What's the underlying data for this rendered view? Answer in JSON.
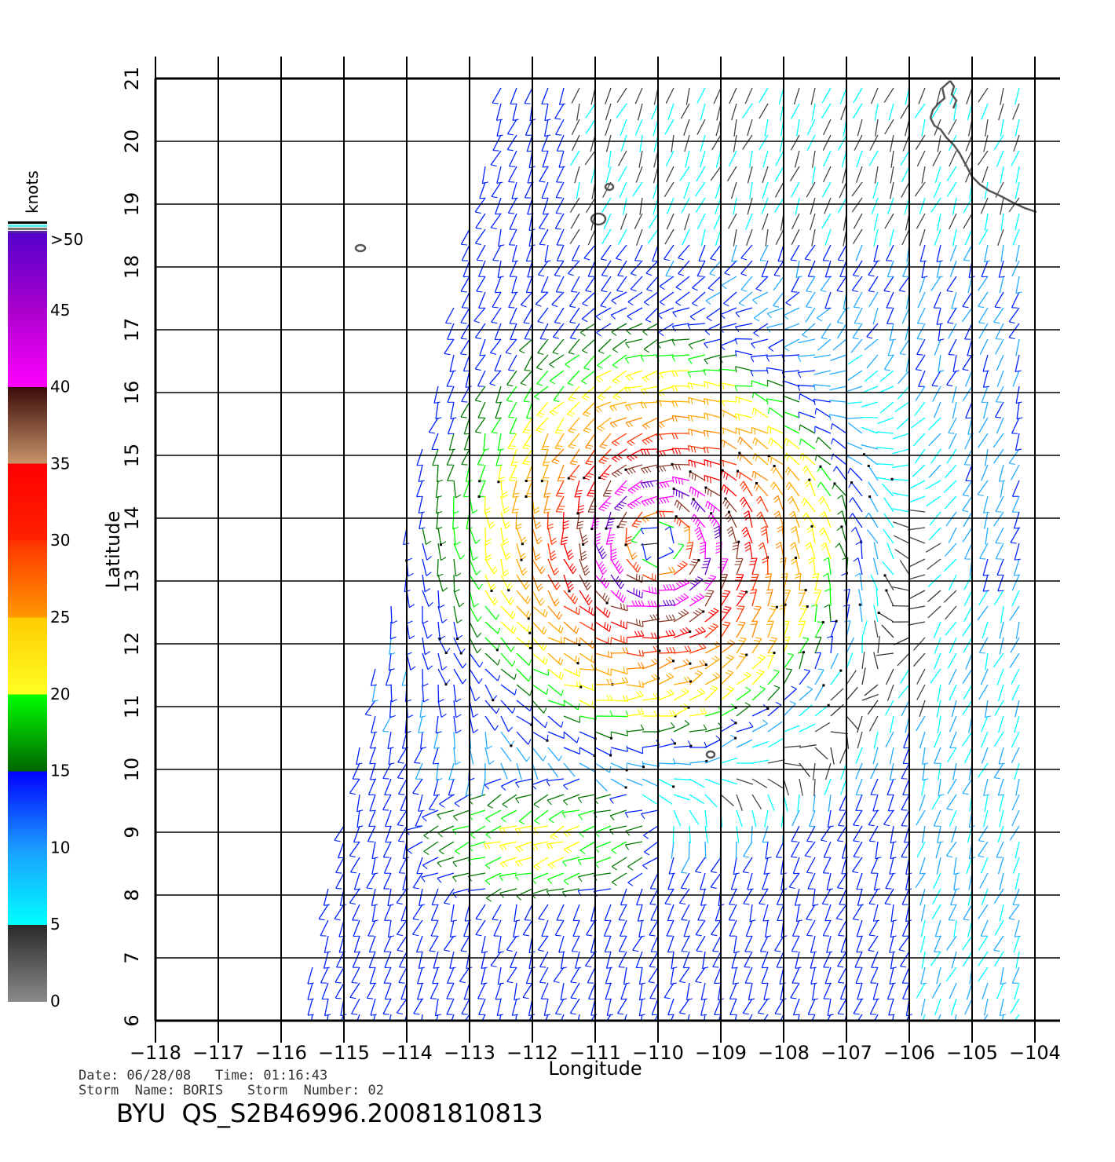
{
  "map": {
    "xlabel": "Longitude",
    "ylabel": "Latitude",
    "lon_range": [
      -118,
      -104
    ],
    "lat_range": [
      6,
      21
    ],
    "lon_ticks": [
      "−118",
      "−117",
      "−116",
      "−115",
      "−114",
      "−113",
      "−112",
      "−111",
      "−110",
      "−109",
      "−108",
      "−107",
      "−106",
      "−105",
      "−104"
    ],
    "lat_ticks": [
      "6",
      "7",
      "8",
      "9",
      "10",
      "11",
      "12",
      "13",
      "14",
      "15",
      "16",
      "17",
      "18",
      "19",
      "20",
      "21"
    ],
    "storm_center": {
      "lon": -110.0,
      "lat": 13.6
    },
    "grid": true
  },
  "colorbar": {
    "title": "knots",
    "labels": [
      ">50",
      "45",
      "40",
      "35",
      "30",
      "25",
      "20",
      "15",
      "10",
      "5",
      "0"
    ],
    "colors": {
      "gray_dark": "#333333",
      "gray_light": "#888888",
      "cyan": "#00ffff",
      "cyan_mid": "#22aaff",
      "blue": "#0022ff",
      "green_dark": "#007700",
      "green": "#00ff00",
      "yellow": "#ffff00",
      "orange": "#ff8800",
      "red_orange": "#ff3300",
      "red": "#ff0000",
      "brown_dark": "#4a0f0a",
      "brown_light": "#c48a5a",
      "magenta": "#ff00ff",
      "purple": "#6600cc"
    }
  },
  "meta": {
    "date_line": "Date: 06/28/08   Time: 01:16:43",
    "storm_line": "Storm  Name: BORIS   Storm  Number: 02",
    "id_line": "BYU  QS_S2B46996.20081810813"
  }
}
